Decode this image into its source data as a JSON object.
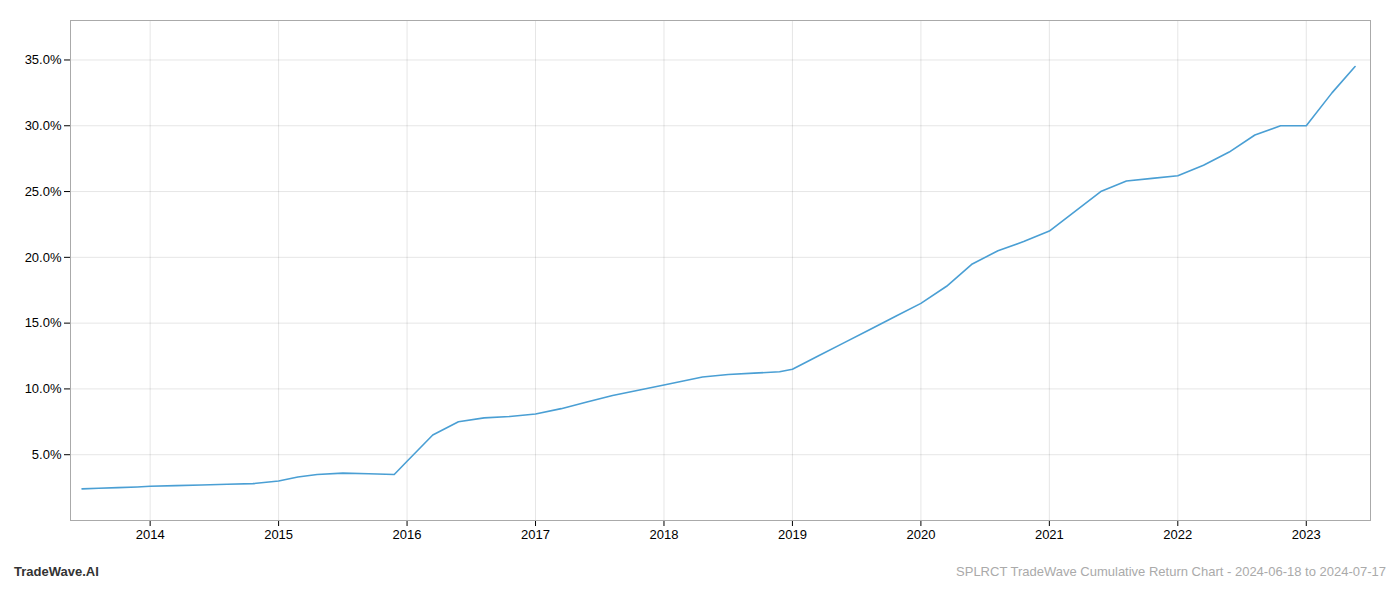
{
  "chart_data": {
    "type": "line",
    "title": "SPLRCT TradeWave Cumulative Return Chart - 2024-06-18 to 2024-07-17",
    "annotations": [
      "TradeWave.AI"
    ],
    "color": "#4a9fd4",
    "grid": true,
    "x": [
      2013.47,
      2013.6,
      2013.75,
      2013.9,
      2014.0,
      2014.2,
      2014.4,
      2014.6,
      2014.8,
      2015.0,
      2015.15,
      2015.3,
      2015.5,
      2015.7,
      2015.9,
      2016.0,
      2016.2,
      2016.4,
      2016.6,
      2016.8,
      2017.0,
      2017.2,
      2017.4,
      2017.6,
      2017.8,
      2018.0,
      2018.15,
      2018.3,
      2018.5,
      2018.7,
      2018.9,
      2019.0,
      2019.2,
      2019.4,
      2019.6,
      2019.8,
      2020.0,
      2020.2,
      2020.4,
      2020.6,
      2020.8,
      2021.0,
      2021.2,
      2021.4,
      2021.6,
      2021.8,
      2022.0,
      2022.2,
      2022.4,
      2022.6,
      2022.8,
      2023.0,
      2023.2,
      2023.38
    ],
    "values": [
      2.4,
      2.45,
      2.5,
      2.55,
      2.6,
      2.65,
      2.7,
      2.75,
      2.8,
      3.0,
      3.3,
      3.5,
      3.6,
      3.55,
      3.5,
      4.5,
      6.5,
      7.5,
      7.8,
      7.9,
      8.1,
      8.5,
      9.0,
      9.5,
      9.9,
      10.3,
      10.6,
      10.9,
      11.1,
      11.2,
      11.3,
      11.5,
      12.5,
      13.5,
      14.5,
      15.5,
      16.5,
      17.8,
      19.5,
      20.5,
      21.2,
      22.0,
      23.5,
      25.0,
      25.8,
      26.0,
      26.2,
      27.0,
      28.0,
      29.3,
      30.0,
      30.0,
      32.5,
      34.5
    ],
    "xlim": [
      2013.38,
      2023.5
    ],
    "xticks": [
      2014,
      2015,
      2016,
      2017,
      2018,
      2019,
      2020,
      2021,
      2022,
      2023
    ],
    "ylim": [
      0,
      38
    ],
    "yticks": [
      {
        "value": 5,
        "label": "5.0%"
      },
      {
        "value": 10,
        "label": "10.0%"
      },
      {
        "value": 15,
        "label": "15.0%"
      },
      {
        "value": 20,
        "label": "20.0%"
      },
      {
        "value": 25,
        "label": "25.0%"
      },
      {
        "value": 30,
        "label": "30.0%"
      },
      {
        "value": 35,
        "label": "35.0%"
      }
    ]
  }
}
